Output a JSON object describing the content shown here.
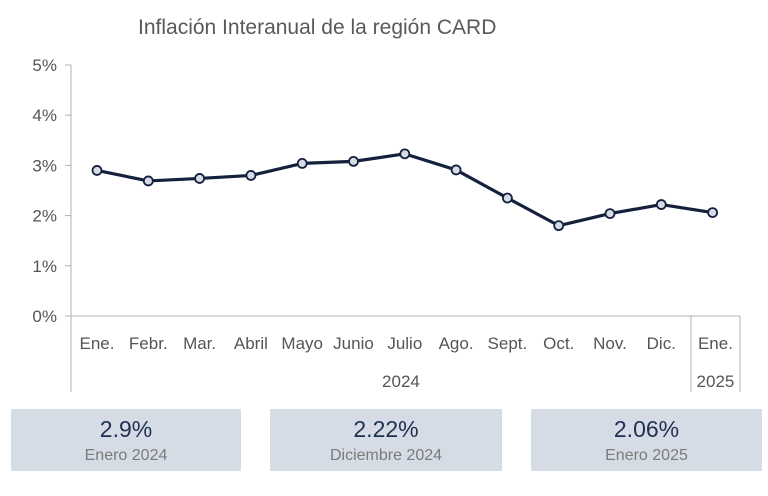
{
  "chart_data": {
    "type": "line",
    "title": "Inflación Interanual de la región CARD",
    "categories": [
      "Ene.",
      "Febr.",
      "Mar.",
      "Abril",
      "Mayo",
      "Junio",
      "Julio",
      "Ago.",
      "Sept.",
      "Oct.",
      "Nov.",
      "Dic.",
      "Ene."
    ],
    "groups": [
      {
        "label": "2024",
        "categories": [
          "Ene.",
          "Febr.",
          "Mar.",
          "Abril",
          "Mayo",
          "Junio",
          "Julio",
          "Ago.",
          "Sept.",
          "Oct.",
          "Nov.",
          "Dic."
        ]
      },
      {
        "label": "2025",
        "categories": [
          "Ene."
        ]
      }
    ],
    "series": [
      {
        "values": [
          2.9,
          2.69,
          2.74,
          2.8,
          3.04,
          3.08,
          3.23,
          2.91,
          2.35,
          1.8,
          2.04,
          2.22,
          2.06
        ]
      }
    ],
    "ylim": [
      0,
      5
    ],
    "yticks": [
      "0%",
      "1%",
      "2%",
      "3%",
      "4%",
      "5%"
    ],
    "grid": false,
    "line_color": "#14213d",
    "marker_fill": "#d5dce6"
  },
  "summary": [
    {
      "value": "2.9%",
      "label": "Enero 2024"
    },
    {
      "value": "2.22%",
      "label": "Diciembre 2024"
    },
    {
      "value": "2.06%",
      "label": "Enero 2025"
    }
  ]
}
